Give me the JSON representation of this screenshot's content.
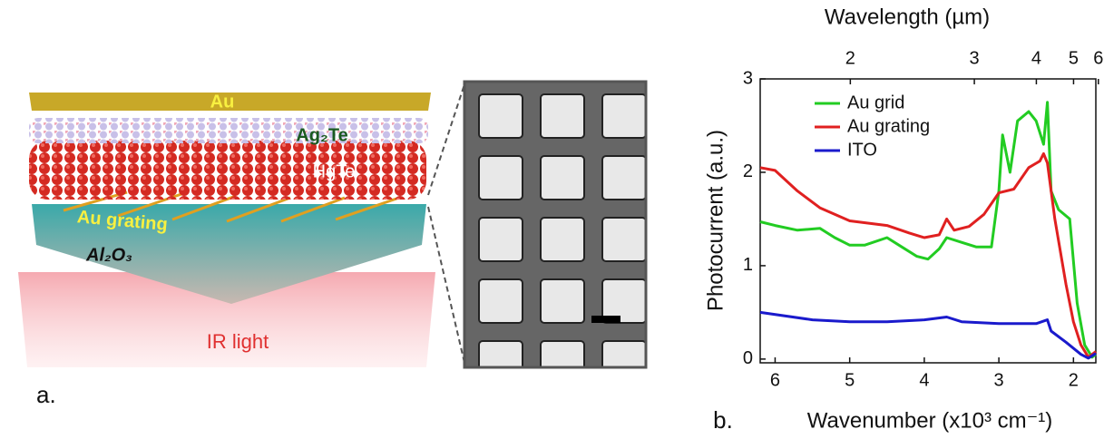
{
  "panel_a": {
    "label": "a.",
    "layers": {
      "top_contact": "Au",
      "interlayer": "Ag₂Te",
      "absorber": "HgTe",
      "grating": "Au grating",
      "substrate": "Al₂O₃",
      "light": "IR light"
    }
  },
  "chart_data": {
    "type": "line",
    "panel_label": "b.",
    "xlabel": "Wavenumber (x10³ cm⁻¹)",
    "ylabel": "Photocurrent (a.u.)",
    "x2label": "Wavelength (µm)",
    "xlim": [
      6.2,
      1.7
    ],
    "xticks": [
      6,
      5,
      4,
      3,
      2
    ],
    "x2lim": [
      1.61,
      5.88
    ],
    "x2scale": "reciprocal",
    "x2ticks": [
      2,
      3,
      4,
      5,
      6
    ],
    "ylim": [
      -0.04,
      3
    ],
    "yticks": [
      0,
      1,
      2,
      3
    ],
    "legend": "upper left",
    "series": [
      {
        "name": "Au grid",
        "color": "#22cc22",
        "x": [
          6.2,
          6.0,
          5.7,
          5.4,
          5.2,
          5.0,
          4.8,
          4.5,
          4.3,
          4.1,
          3.95,
          3.8,
          3.7,
          3.5,
          3.3,
          3.1,
          3.0,
          2.95,
          2.9,
          2.85,
          2.75,
          2.6,
          2.5,
          2.4,
          2.35,
          2.3,
          2.2,
          2.05,
          1.95,
          1.85,
          1.75,
          1.7
        ],
        "values": [
          1.47,
          1.43,
          1.38,
          1.4,
          1.3,
          1.22,
          1.22,
          1.3,
          1.2,
          1.1,
          1.07,
          1.18,
          1.3,
          1.25,
          1.2,
          1.2,
          1.8,
          2.4,
          2.2,
          2.0,
          2.55,
          2.65,
          2.55,
          2.3,
          2.75,
          1.8,
          1.6,
          1.5,
          0.6,
          0.15,
          0.02,
          0.05
        ]
      },
      {
        "name": "Au grating",
        "color": "#e02020",
        "x": [
          6.2,
          6.0,
          5.7,
          5.4,
          5.0,
          4.5,
          4.2,
          4.0,
          3.8,
          3.7,
          3.6,
          3.4,
          3.2,
          3.0,
          2.8,
          2.6,
          2.45,
          2.4,
          2.35,
          2.25,
          2.1,
          2.0,
          1.9,
          1.8,
          1.7
        ],
        "values": [
          2.05,
          2.02,
          1.8,
          1.62,
          1.48,
          1.43,
          1.35,
          1.3,
          1.33,
          1.5,
          1.38,
          1.42,
          1.55,
          1.78,
          1.82,
          2.05,
          2.12,
          2.2,
          2.1,
          1.5,
          0.8,
          0.4,
          0.15,
          0.02,
          0.08
        ]
      },
      {
        "name": "ITO",
        "color": "#1a1acc",
        "x": [
          6.2,
          5.5,
          5.0,
          4.5,
          4.0,
          3.7,
          3.5,
          3.0,
          2.5,
          2.35,
          2.3,
          2.1,
          1.9,
          1.8,
          1.7
        ],
        "values": [
          0.5,
          0.42,
          0.4,
          0.4,
          0.42,
          0.45,
          0.4,
          0.38,
          0.38,
          0.42,
          0.3,
          0.18,
          0.05,
          0.01,
          0.06
        ]
      }
    ]
  }
}
